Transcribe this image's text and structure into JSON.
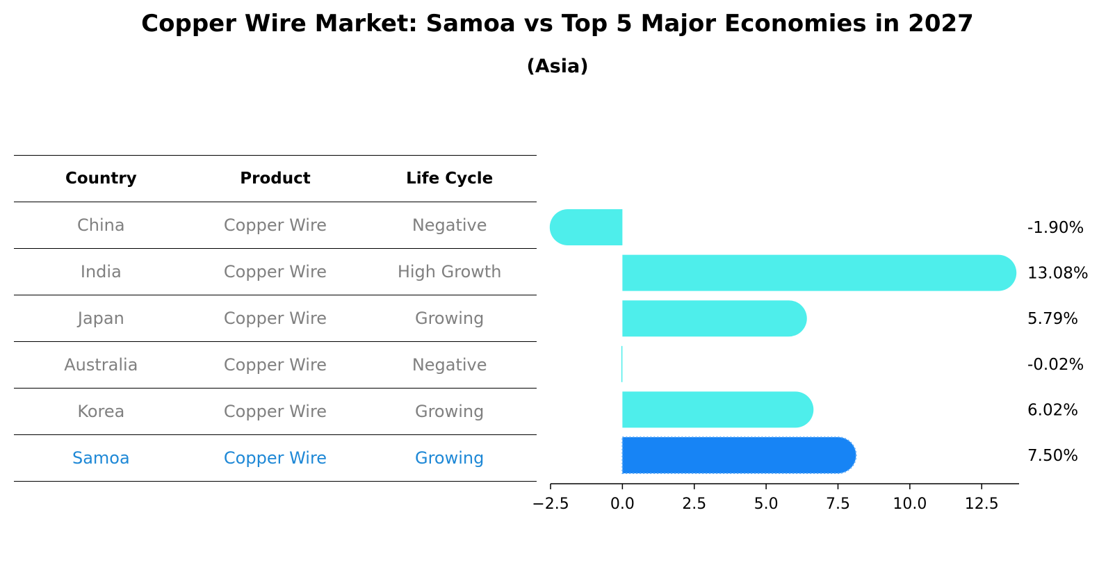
{
  "title": "Copper Wire Market: Samoa vs Top 5 Major Economies in 2027",
  "subtitle": "(Asia)",
  "table": {
    "headers": [
      "Country",
      "Product",
      "Life Cycle"
    ],
    "rows": [
      [
        "China",
        "Copper Wire",
        "Negative"
      ],
      [
        "India",
        "Copper Wire",
        "High Growth"
      ],
      [
        "Japan",
        "Copper Wire",
        "Growing"
      ],
      [
        "Australia",
        "Copper Wire",
        "Negative"
      ],
      [
        "Korea",
        "Copper Wire",
        "Growing"
      ],
      [
        "Samoa",
        "Copper Wire",
        "Growing"
      ]
    ],
    "highlight_row": 5
  },
  "colors": {
    "bar": "#4eeeeb",
    "highlight_bar": "#1784f5",
    "highlight_text": "#1e88d6",
    "muted_text": "#808080"
  },
  "chart_data": {
    "type": "bar",
    "orientation": "horizontal",
    "categories": [
      "China",
      "India",
      "Japan",
      "Australia",
      "Korea",
      "Samoa"
    ],
    "values": [
      -1.9,
      13.08,
      5.79,
      -0.02,
      6.02,
      7.5
    ],
    "value_labels": [
      "-1.90%",
      "13.08%",
      "5.79%",
      "-0.02%",
      "6.02%",
      "7.50%"
    ],
    "highlight": "Samoa",
    "xlim": [
      -2.5,
      13.8
    ],
    "xticks": [
      -2.5,
      0.0,
      2.5,
      5.0,
      7.5,
      10.0,
      12.5
    ],
    "xtick_labels": [
      "−2.5",
      "0.0",
      "2.5",
      "5.0",
      "7.5",
      "10.0",
      "12.5"
    ],
    "grid": false
  }
}
